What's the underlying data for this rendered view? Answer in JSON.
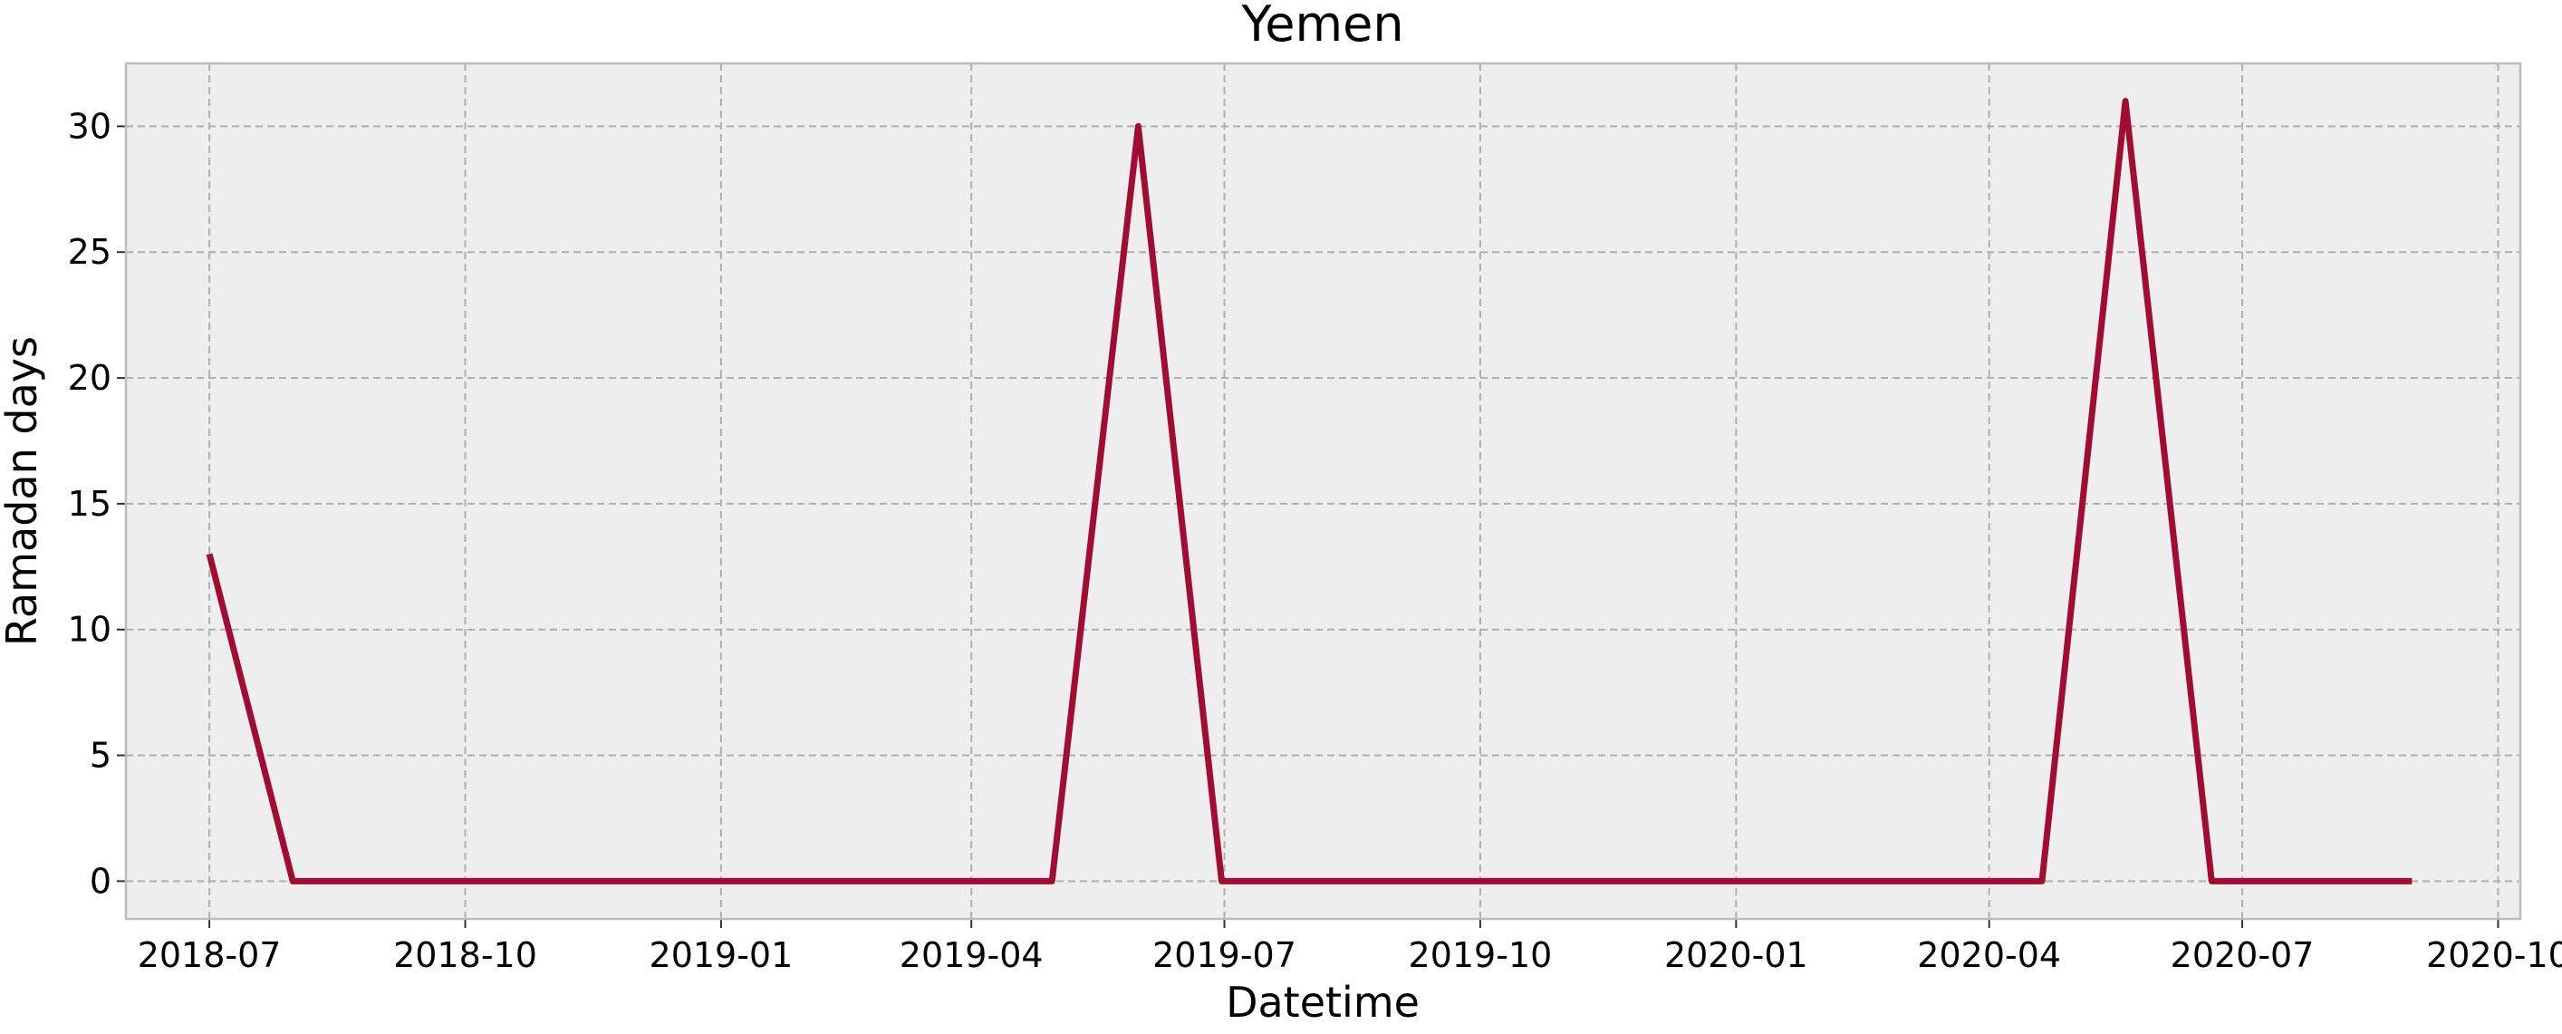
{
  "chart_data": {
    "type": "line",
    "title": "Yemen",
    "xlabel": "Datetime",
    "ylabel": "Ramadan days",
    "xlim": [
      "2018-06-01",
      "2020-10-09"
    ],
    "ylim": [
      -1.5,
      32.5
    ],
    "x_ticks": [
      "2018-07-01",
      "2018-10-01",
      "2019-01-01",
      "2019-04-01",
      "2019-07-01",
      "2019-10-01",
      "2020-01-01",
      "2020-04-01",
      "2020-07-01",
      "2020-10-01"
    ],
    "x_tick_labels": [
      "2018-07",
      "2018-10",
      "2019-01",
      "2019-04",
      "2019-07",
      "2019-10",
      "2020-01",
      "2020-04",
      "2020-07",
      "2020-10"
    ],
    "y_ticks": [
      0,
      5,
      10,
      15,
      20,
      25,
      30
    ],
    "y_tick_labels": [
      "0",
      "5",
      "10",
      "15",
      "20",
      "25",
      "30"
    ],
    "grid": true,
    "series": [
      {
        "color": "#a10c33",
        "points": [
          {
            "x": "2018-07-01",
            "y": 13
          },
          {
            "x": "2018-07-31",
            "y": 0
          },
          {
            "x": "2018-08-31",
            "y": 0
          },
          {
            "x": "2018-09-30",
            "y": 0
          },
          {
            "x": "2018-10-31",
            "y": 0
          },
          {
            "x": "2018-11-30",
            "y": 0
          },
          {
            "x": "2018-12-31",
            "y": 0
          },
          {
            "x": "2019-01-31",
            "y": 0
          },
          {
            "x": "2019-02-28",
            "y": 0
          },
          {
            "x": "2019-03-31",
            "y": 0
          },
          {
            "x": "2019-04-30",
            "y": 0
          },
          {
            "x": "2019-05-31",
            "y": 30
          },
          {
            "x": "2019-06-30",
            "y": 0
          },
          {
            "x": "2019-07-31",
            "y": 0
          },
          {
            "x": "2019-08-31",
            "y": 0
          },
          {
            "x": "2019-09-30",
            "y": 0
          },
          {
            "x": "2019-10-31",
            "y": 0
          },
          {
            "x": "2019-11-30",
            "y": 0
          },
          {
            "x": "2019-12-31",
            "y": 0
          },
          {
            "x": "2020-01-31",
            "y": 0
          },
          {
            "x": "2020-02-29",
            "y": 0
          },
          {
            "x": "2020-03-31",
            "y": 0
          },
          {
            "x": "2020-04-20",
            "y": 0
          },
          {
            "x": "2020-05-20",
            "y": 31
          },
          {
            "x": "2020-06-20",
            "y": 0
          },
          {
            "x": "2020-07-31",
            "y": 0
          },
          {
            "x": "2020-08-31",
            "y": 0
          }
        ]
      }
    ]
  }
}
